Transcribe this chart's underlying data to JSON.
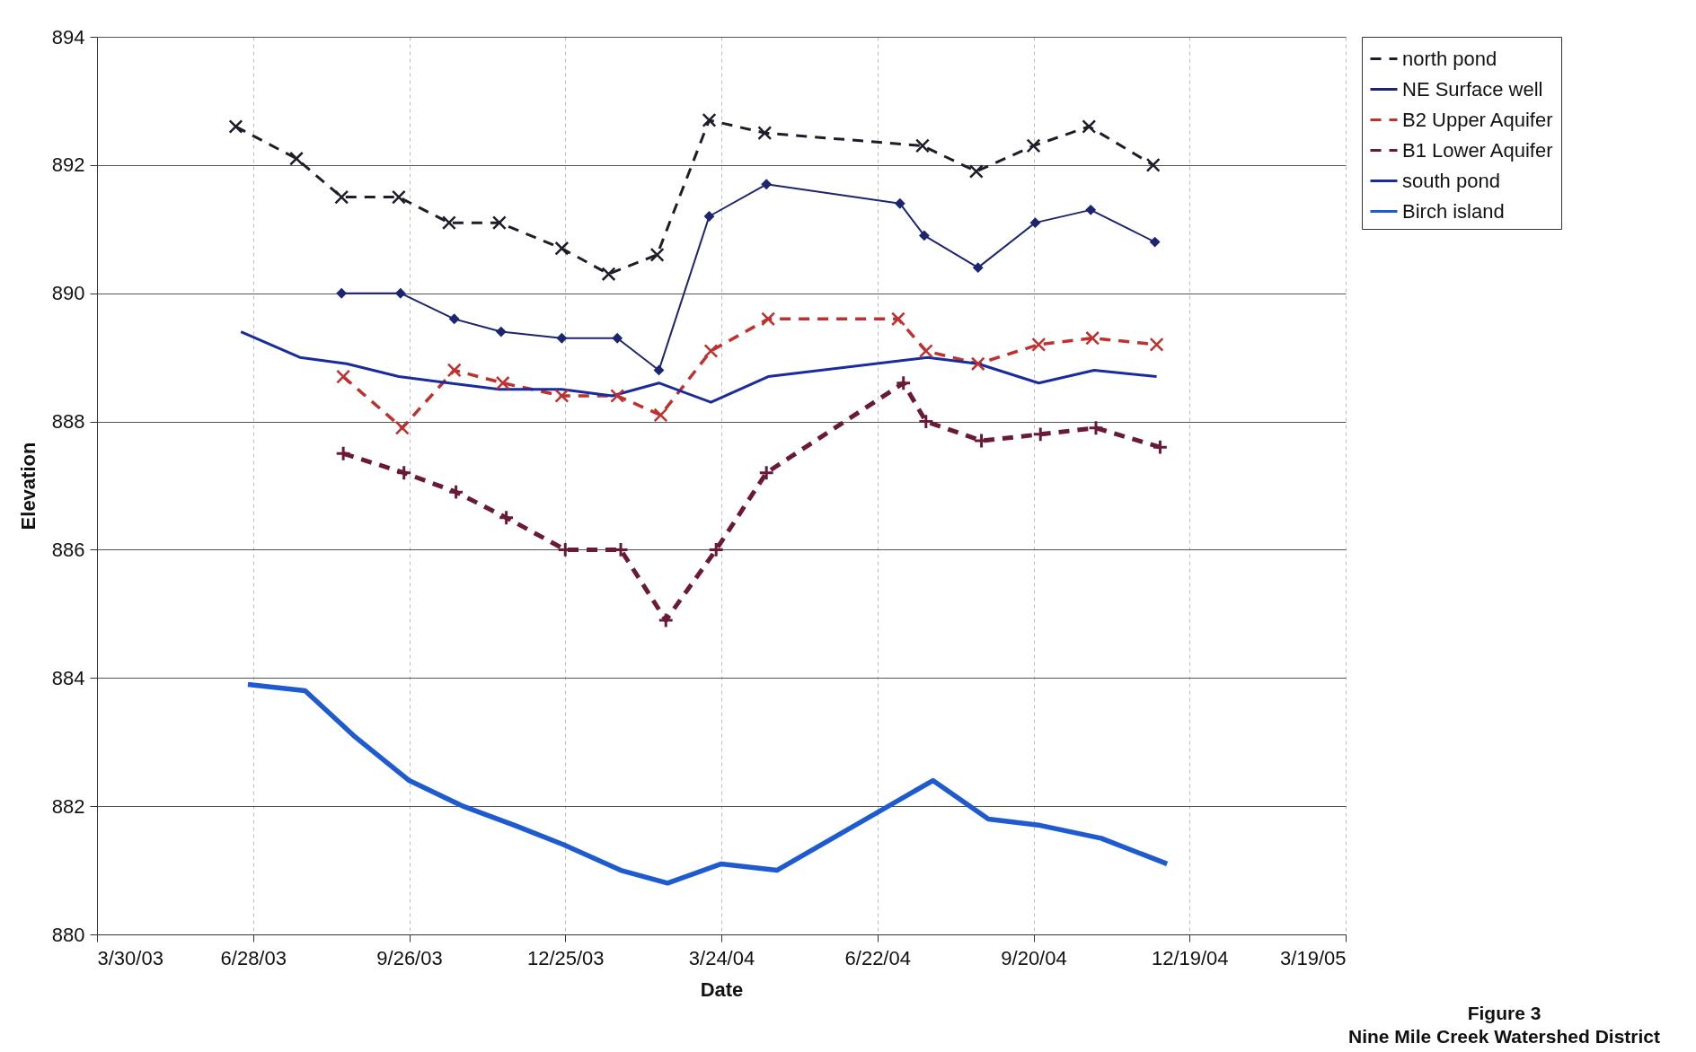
{
  "chart_data": {
    "type": "line",
    "xlabel": "Date",
    "ylabel": "Elevation",
    "xlim": [
      "2003-03-30",
      "2005-03-19"
    ],
    "xticks": [
      {
        "value": "2003-03-30",
        "label": "3/30/03"
      },
      {
        "value": "2003-06-28",
        "label": "6/28/03"
      },
      {
        "value": "2003-09-26",
        "label": "9/26/03"
      },
      {
        "value": "2003-12-25",
        "label": "12/25/03"
      },
      {
        "value": "2004-03-24",
        "label": "3/24/04"
      },
      {
        "value": "2004-06-22",
        "label": "6/22/04"
      },
      {
        "value": "2004-09-20",
        "label": "9/20/04"
      },
      {
        "value": "2004-12-19",
        "label": "12/19/04"
      },
      {
        "value": "2005-03-19",
        "label": "3/19/05"
      }
    ],
    "ylim": [
      880,
      894
    ],
    "yticks": [
      880,
      882,
      884,
      886,
      888,
      890,
      892,
      894
    ],
    "grid": true,
    "legend": "right",
    "annotations": [
      "Figure 3",
      "Nine Mile Creek Watershed District"
    ],
    "series": [
      {
        "name": "north pond",
        "color": "#1e1e2a",
        "marker": "cross",
        "line_style": "dashed",
        "x": [
          "2003-06-18",
          "2003-07-23",
          "2003-08-18",
          "2003-09-20",
          "2003-10-19",
          "2003-11-17",
          "2003-12-23",
          "2004-01-19",
          "2004-02-16",
          "2004-03-17",
          "2004-04-18",
          "2004-07-18",
          "2004-08-18",
          "2004-09-20",
          "2004-10-22",
          "2004-11-28"
        ],
        "values": [
          892.6,
          892.1,
          891.5,
          891.5,
          891.1,
          891.1,
          890.7,
          890.3,
          890.6,
          892.7,
          892.5,
          892.3,
          891.9,
          892.3,
          892.6,
          892.0
        ]
      },
      {
        "name": "NE Surface well",
        "color": "#1c2570",
        "marker": "diamond",
        "line_style": "solid",
        "x": [
          "2003-08-18",
          "2003-09-21",
          "2003-10-22",
          "2003-11-18",
          "2003-12-23",
          "2004-01-24",
          "2004-02-17",
          "2004-03-17",
          "2004-04-19",
          "2004-07-05",
          "2004-07-19",
          "2004-08-19",
          "2004-09-21",
          "2004-10-23",
          "2004-11-29"
        ],
        "values": [
          890.0,
          890.0,
          889.6,
          889.4,
          889.3,
          889.3,
          888.8,
          891.2,
          891.7,
          891.4,
          890.9,
          890.4,
          891.1,
          891.3,
          890.8
        ]
      },
      {
        "name": "B2 Upper Aquifer",
        "color": "#c0302e",
        "marker": "cross",
        "line_style": "dashed",
        "x": [
          "2003-08-19",
          "2003-09-22",
          "2003-10-22",
          "2003-11-19",
          "2003-12-23",
          "2004-01-24",
          "2004-02-18",
          "2004-03-18",
          "2004-04-20",
          "2004-07-04",
          "2004-07-20",
          "2004-08-19",
          "2004-09-23",
          "2004-10-24",
          "2004-11-30"
        ],
        "values": [
          888.7,
          887.9,
          888.8,
          888.6,
          888.4,
          888.4,
          888.1,
          889.1,
          889.6,
          889.6,
          889.1,
          888.9,
          889.2,
          889.3,
          889.2
        ]
      },
      {
        "name": "B1 Lower Aquifer",
        "color": "#6a1a38",
        "marker": "plus",
        "line_style": "dashed",
        "x": [
          "2003-08-19",
          "2003-09-23",
          "2003-10-23",
          "2003-11-21",
          "2003-12-25",
          "2004-01-26",
          "2004-02-21",
          "2004-03-21",
          "2004-04-19",
          "2004-07-07",
          "2004-07-20",
          "2004-08-21",
          "2004-09-24",
          "2004-10-26",
          "2004-12-02"
        ],
        "values": [
          887.5,
          887.2,
          886.9,
          886.5,
          886.0,
          886.0,
          884.9,
          886.0,
          887.2,
          888.6,
          888.0,
          887.7,
          887.8,
          887.9,
          887.6
        ]
      },
      {
        "name": "south pond",
        "color": "#1a2c9c",
        "marker": "none",
        "line_style": "solid",
        "x": [
          "2003-06-21",
          "2003-07-25",
          "2003-08-21",
          "2003-09-20",
          "2003-10-19",
          "2003-11-17",
          "2003-12-23",
          "2004-01-21",
          "2004-02-17",
          "2004-03-18",
          "2004-04-20",
          "2004-07-21",
          "2004-08-19",
          "2004-09-23",
          "2004-10-25",
          "2004-11-30"
        ],
        "values": [
          889.4,
          889.0,
          888.9,
          888.7,
          888.6,
          888.5,
          888.5,
          888.4,
          888.6,
          888.3,
          888.7,
          889.0,
          888.9,
          888.6,
          888.8,
          888.7
        ]
      },
      {
        "name": "Birch island",
        "color": "#1f5bd0",
        "marker": "none",
        "line_style": "solid",
        "x": [
          "2003-06-25",
          "2003-07-28",
          "2003-08-25",
          "2003-09-26",
          "2003-10-27",
          "2003-11-26",
          "2003-12-24",
          "2004-01-26",
          "2004-02-22",
          "2004-03-24",
          "2004-04-25",
          "2004-07-24",
          "2004-08-25",
          "2004-09-24",
          "2004-10-29",
          "2004-12-06"
        ],
        "values": [
          883.9,
          883.8,
          883.1,
          882.4,
          882.0,
          881.7,
          881.4,
          881.0,
          880.8,
          881.1,
          881.0,
          882.4,
          881.8,
          881.7,
          881.5,
          881.1
        ]
      }
    ]
  }
}
